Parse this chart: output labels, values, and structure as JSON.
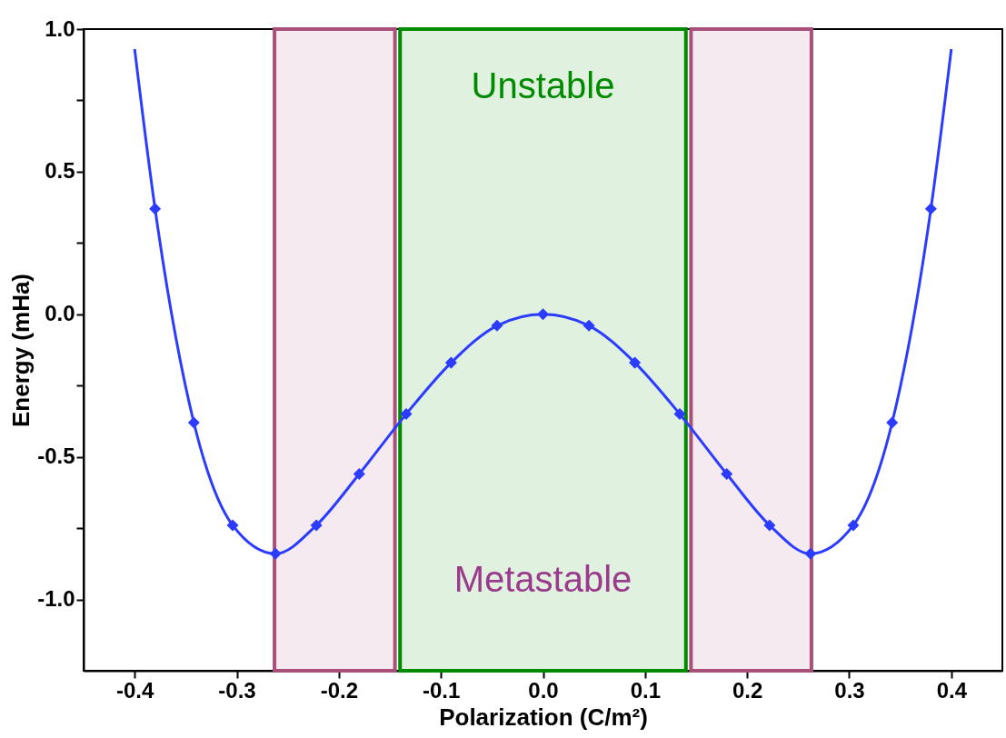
{
  "chart_data": {
    "type": "line",
    "xlabel": "Polarization (C/m²)",
    "ylabel": "Energy (mHa)",
    "xlim": [
      -0.45,
      0.45
    ],
    "ylim": [
      -1.25,
      1.0
    ],
    "xticks": [
      -0.4,
      -0.3,
      -0.2,
      -0.1,
      {
        "value": 0,
        "label": "0.0"
      },
      0.1,
      0.2,
      0.3,
      0.4
    ],
    "yticks": [
      {
        "value": -1,
        "label": "-1.0"
      },
      {
        "value": -0.75,
        "label": null
      },
      -0.5,
      {
        "value": -0.25,
        "label": null
      },
      {
        "value": 0,
        "label": "0.0"
      },
      {
        "value": 0.25,
        "label": null
      },
      0.5,
      {
        "value": 0.75,
        "label": null
      },
      {
        "value": 1,
        "label": "1.0"
      }
    ],
    "series": [
      {
        "type": "line",
        "color": "#2b3cff",
        "marker": "none",
        "line_style": "solid",
        "x": [
          -0.4,
          -0.38,
          -0.342,
          -0.304,
          -0.262,
          -0.222,
          -0.18,
          -0.134,
          -0.09,
          -0.045,
          0,
          0.045,
          0.09,
          0.134,
          0.18,
          0.222,
          0.262,
          0.304,
          0.342,
          0.38,
          0.4
        ],
        "values": [
          0.93,
          0.37,
          -0.38,
          -0.74,
          -0.84,
          -0.74,
          -0.56,
          -0.35,
          -0.17,
          -0.04,
          0,
          -0.04,
          -0.17,
          -0.35,
          -0.56,
          -0.74,
          -0.84,
          -0.74,
          -0.38,
          0.37,
          0.93
        ]
      },
      {
        "type": "scatter",
        "color": "#2b3cff",
        "marker": "diamond",
        "x": [
          -0.38,
          -0.342,
          -0.304,
          -0.262,
          -0.222,
          -0.18,
          -0.134,
          -0.09,
          -0.045,
          0,
          0.045,
          0.09,
          0.134,
          0.18,
          0.222,
          0.262,
          0.304,
          0.342,
          0.38
        ],
        "values": [
          0.37,
          -0.38,
          -0.74,
          -0.84,
          -0.74,
          -0.56,
          -0.35,
          -0.17,
          -0.04,
          0,
          -0.04,
          -0.17,
          -0.35,
          -0.56,
          -0.74,
          -0.84,
          -0.74,
          -0.38,
          0.37
        ]
      }
    ],
    "bands": [
      {
        "axis": "x",
        "from": -0.263,
        "to": -0.145,
        "color": "#a8507a"
      },
      {
        "axis": "x",
        "from": -0.14,
        "to": 0.14,
        "color": "#008a00",
        "label": "Unstable"
      },
      {
        "axis": "x",
        "from": 0.145,
        "to": 0.263,
        "color": "#a8507a"
      }
    ],
    "annotations": [
      "Metastable"
    ]
  }
}
